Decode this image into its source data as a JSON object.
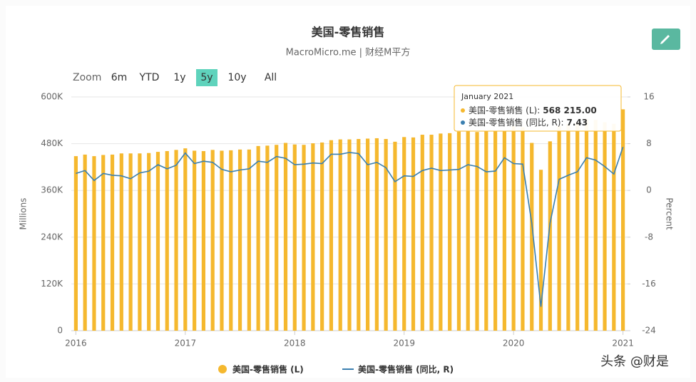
{
  "header": {
    "title": "美国-零售销售",
    "subtitle": "MacroMicro.me | 财经M平方"
  },
  "zoom": {
    "label": "Zoom",
    "options": [
      "6m",
      "YTD",
      "1y",
      "5y",
      "10y",
      "All"
    ],
    "active": "5y"
  },
  "watermark": "头条 @财是",
  "chart_data": {
    "type": "bar-line",
    "categories": [
      "2016",
      null,
      null,
      null,
      null,
      null,
      null,
      null,
      null,
      null,
      null,
      null,
      "2017",
      null,
      null,
      null,
      null,
      null,
      null,
      null,
      null,
      null,
      null,
      null,
      "2018",
      null,
      null,
      null,
      null,
      null,
      null,
      null,
      null,
      null,
      null,
      null,
      "2019",
      null,
      null,
      null,
      null,
      null,
      null,
      null,
      null,
      null,
      null,
      null,
      "2020",
      null,
      null,
      null,
      null,
      null,
      null,
      null,
      null,
      null,
      null,
      null,
      "2021"
    ],
    "series": [
      {
        "name": "美国-零售销售 (L)",
        "type": "bar",
        "color": "#f5b82e",
        "values": [
          448000,
          452000,
          448000,
          451000,
          452000,
          455000,
          455000,
          455000,
          456000,
          459000,
          461000,
          464000,
          468000,
          462000,
          461000,
          464000,
          462000,
          463000,
          465000,
          465000,
          474000,
          475000,
          477000,
          482000,
          478000,
          477000,
          481000,
          483000,
          489000,
          491000,
          491000,
          492000,
          493000,
          494000,
          492000,
          485000,
          497000,
          496000,
          503000,
          503000,
          506000,
          507000,
          511000,
          513000,
          510000,
          512000,
          514000,
          513000,
          525000,
          522000,
          482000,
          413000,
          486000,
          525000,
          530000,
          534000,
          543000,
          541000,
          535000,
          531000,
          568215
        ]
      },
      {
        "name": "美国-零售销售 (同比, R)",
        "type": "line",
        "axis": "y2",
        "color": "#3a7fb0",
        "values": [
          2.9,
          3.4,
          1.7,
          2.9,
          2.6,
          2.5,
          2.0,
          3.0,
          3.3,
          4.4,
          3.7,
          4.3,
          6.4,
          4.6,
          5.0,
          4.8,
          3.6,
          3.2,
          3.5,
          3.7,
          5.0,
          4.8,
          5.8,
          5.5,
          4.4,
          4.5,
          4.7,
          4.6,
          6.2,
          6.2,
          6.5,
          6.3,
          4.4,
          4.8,
          3.9,
          1.5,
          2.5,
          2.4,
          3.4,
          3.8,
          3.4,
          3.5,
          3.6,
          4.4,
          4.1,
          3.2,
          3.3,
          5.6,
          4.6,
          4.5,
          -5.6,
          -19.9,
          -5.6,
          1.9,
          2.6,
          3.2,
          5.6,
          5.2,
          4.1,
          2.8,
          7.43
        ]
      }
    ],
    "ylabel": "Millions",
    "y2label": "Percent",
    "ylim": [
      0,
      600000
    ],
    "yticks": [
      0,
      {
        "value": 120000,
        "label": "120K"
      },
      {
        "value": 240000,
        "label": "240K"
      },
      {
        "value": 360000,
        "label": "360K"
      },
      {
        "value": 480000,
        "label": "480K"
      },
      {
        "value": 600000,
        "label": "600K"
      }
    ],
    "y2lim": [
      -24,
      16
    ],
    "y2ticks": [
      -24,
      -16,
      -8,
      0,
      8,
      16
    ],
    "grid": true,
    "tooltip": {
      "title": "January 2021",
      "items": [
        {
          "label": "美国-零售销售 (L):",
          "value": "568 215.00"
        },
        {
          "label": "美国-零售销售 (同比, R):",
          "value": "7.43"
        }
      ]
    }
  }
}
